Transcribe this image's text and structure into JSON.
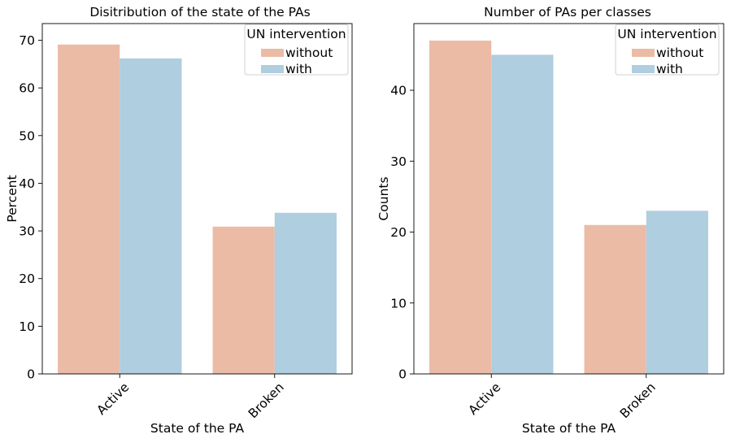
{
  "chart_data": [
    {
      "type": "bar",
      "title": "Disitribution of the state of the PAs",
      "xlabel": "State of the PA",
      "ylabel": "Percent",
      "categories": [
        "Active",
        "Broken"
      ],
      "series": [
        {
          "name": "without",
          "values": [
            69.1,
            30.9
          ]
        },
        {
          "name": "with",
          "values": [
            66.2,
            33.8
          ]
        }
      ],
      "ylim": [
        0,
        73.5
      ],
      "yticks": [
        0,
        10,
        20,
        30,
        40,
        50,
        60,
        70
      ],
      "legend_title": "UN intervention",
      "legend_position": "top-right"
    },
    {
      "type": "bar",
      "title": "Number of PAs per classes",
      "xlabel": "State of the PA",
      "ylabel": "Counts",
      "categories": [
        "Active",
        "Broken"
      ],
      "series": [
        {
          "name": "without",
          "values": [
            47,
            21
          ]
        },
        {
          "name": "with",
          "values": [
            45,
            23
          ]
        }
      ],
      "ylim": [
        0,
        49.4
      ],
      "yticks": [
        0,
        10,
        20,
        30,
        40
      ],
      "legend_title": "UN intervention",
      "legend_position": "top-right"
    }
  ],
  "colors": {
    "without": "#EBBBA6",
    "with": "#AFCEDF"
  }
}
